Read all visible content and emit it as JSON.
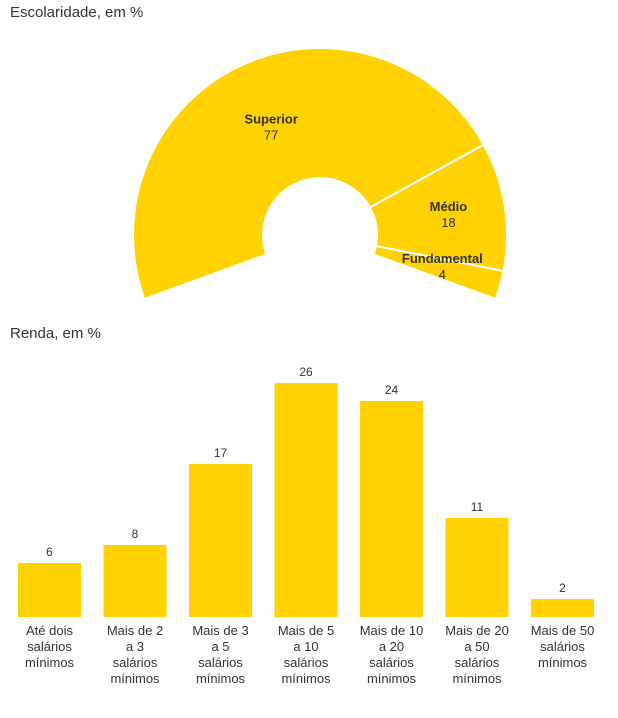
{
  "chart_data": [
    {
      "type": "pie",
      "title": "Escolaridade, em %",
      "color": "#FFD200",
      "separator_color": "#ffffff",
      "categories": [
        "Superior",
        "Médio",
        "Fundamental"
      ],
      "values": [
        77,
        18,
        4
      ]
    },
    {
      "type": "bar",
      "title": "Renda, em %",
      "color": "#FFD200",
      "categories": [
        "Até dois salários mínimos",
        "Mais de 2 a 3 salários mínimos",
        "Mais de 3 a 5 salários mínimos",
        "Mais de 5 a 10 salários mínimos",
        "Mais de 10 a 20 salários mínimos",
        "Mais de 20 a 50 salários mínimos",
        "Mais de 50 salários mínimos"
      ],
      "values": [
        6,
        8,
        17,
        26,
        24,
        11,
        2
      ],
      "grid": false,
      "xlabel": "",
      "ylabel": ""
    }
  ]
}
